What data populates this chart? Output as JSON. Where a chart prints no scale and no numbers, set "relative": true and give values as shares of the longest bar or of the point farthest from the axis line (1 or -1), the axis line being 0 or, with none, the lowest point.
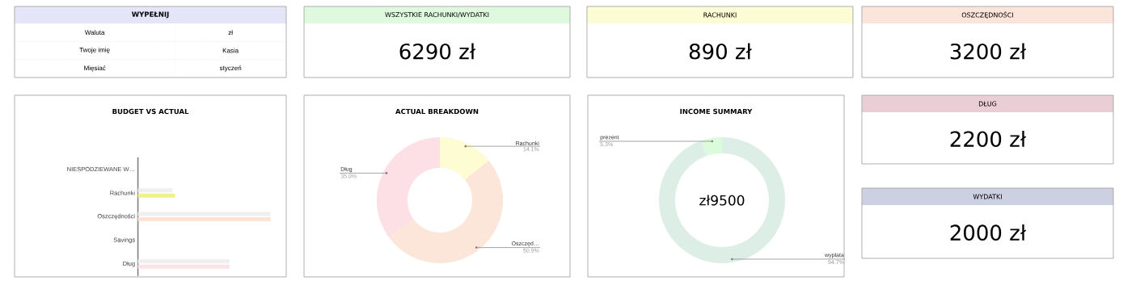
{
  "chart_data": [
    {
      "type": "other",
      "title": "WYPEŁNIJ",
      "color": "#e5e5fa",
      "categories": [
        "Waluta",
        "Twoje imię",
        "Mięsiać"
      ],
      "annotations": [
        "zł",
        "Kasia",
        "styczeń"
      ]
    },
    {
      "type": "other",
      "title": "WSZYSTKIE RACHUNKI/WYDATKI",
      "color": "#dff9df",
      "annotations": [
        "6290 zł"
      ]
    },
    {
      "type": "other",
      "title": "RACHUNKI",
      "color": "#fdfdd5",
      "annotations": [
        "890 zł"
      ]
    },
    {
      "type": "other",
      "title": "OSZCZĘDNOŚCI",
      "color": "#fbe5da",
      "annotations": [
        "3200 zł"
      ]
    },
    {
      "type": "bar",
      "orientation": "horizontal",
      "relative": true,
      "title": "BUDGET VS ACTUAL",
      "categories": [
        "NIESPODZIEWANE W…",
        "Rachunki",
        "Oszczędności",
        "Savings",
        "Dług"
      ],
      "series": [
        {
          "color": "#efefef",
          "values": [
            null,
            0.26,
            1,
            null,
            0.69
          ]
        },
        {
          "colors": [
            null,
            "#eef28c",
            "#fde3d5",
            null,
            "#fde0e8"
          ],
          "values": [
            null,
            0.28,
            1,
            null,
            0.69
          ]
        }
      ]
    },
    {
      "type": "donut",
      "title": "ACTUAL BREAKDOWN",
      "categories": [
        "Rachunki",
        "Oszczęd…",
        "Dług"
      ],
      "values": [
        14.1,
        50.9,
        35.0
      ],
      "colors": [
        "#fdfcd2",
        "#fce5d9",
        "#fde0e6"
      ],
      "value_labels": [
        "14.1%",
        "50.9%",
        "35.0%"
      ]
    },
    {
      "type": "donut",
      "title": "INCOME SUMMARY",
      "categories": [
        "wypłata",
        "prezent"
      ],
      "values": [
        94.7,
        5.3
      ],
      "colors": [
        "#dceee6",
        "#dcfadc"
      ],
      "value_labels": [
        "94.7%",
        "5.3%"
      ],
      "annotations": [
        "zł9500"
      ]
    },
    {
      "type": "other",
      "title": "DŁUG",
      "color": "#eaced5",
      "annotations": [
        "2200 zł"
      ]
    },
    {
      "type": "other",
      "title": "WYDATKI",
      "color": "#cdcfe2",
      "annotations": [
        "2000 zł"
      ]
    }
  ]
}
